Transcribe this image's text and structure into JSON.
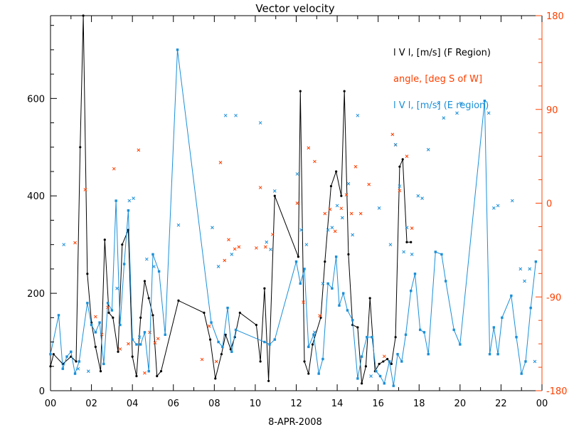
{
  "chart_data": {
    "type": "line",
    "title": "Vector velocity",
    "xlabel": "8-APR-2008",
    "xlim": [
      0,
      24
    ],
    "x_ticks": [
      "00",
      "02",
      "04",
      "06",
      "08",
      "10",
      "12",
      "14",
      "16",
      "18",
      "20",
      "22",
      "00"
    ],
    "y_left": {
      "lim": [
        0,
        770
      ],
      "ticks": [
        0,
        200,
        400,
        600
      ],
      "labels": [
        "0",
        "200",
        "400",
        "600"
      ]
    },
    "y_right": {
      "lim": [
        -180,
        180
      ],
      "ticks": [
        -180,
        -90,
        0,
        90,
        180
      ],
      "labels": [
        "-180",
        "-90",
        "0",
        "90",
        "180"
      ]
    },
    "grid": false,
    "legend_position": "top-right",
    "colors": {
      "f_region": "#000000",
      "angle": "#ff4000",
      "e_region": "#1a8fd8"
    },
    "series": [
      {
        "name": "l V l, [m/s] (F Region)",
        "axis": "left",
        "style": "line-dot",
        "color": "#000000",
        "x": [
          0.0,
          0.15,
          0.6,
          1.0,
          1.25,
          1.45,
          1.6,
          1.8,
          2.0,
          2.2,
          2.45,
          2.65,
          2.85,
          3.05,
          3.3,
          3.5,
          3.8,
          4.0,
          4.2,
          4.4,
          4.6,
          4.8,
          5.0,
          5.2,
          5.4,
          6.25,
          7.5,
          7.8,
          8.05,
          8.35,
          8.55,
          8.8,
          9.0,
          9.25,
          10.05,
          10.25,
          10.45,
          10.65,
          10.95,
          12.1,
          12.2,
          12.4,
          12.6,
          12.8,
          13.2,
          13.4,
          13.7,
          13.95,
          14.2,
          14.35,
          14.55,
          14.75,
          15.0,
          15.2,
          15.4,
          15.6,
          15.85,
          16.05,
          16.25,
          16.45,
          16.65,
          16.85,
          17.05,
          17.2,
          17.4,
          17.6
        ],
        "y": [
          50,
          75,
          55,
          70,
          60,
          500,
          770,
          240,
          140,
          90,
          40,
          310,
          160,
          150,
          80,
          300,
          330,
          70,
          30,
          150,
          225,
          190,
          155,
          30,
          40,
          185,
          160,
          105,
          25,
          75,
          115,
          85,
          110,
          160,
          135,
          60,
          210,
          20,
          400,
          275,
          615,
          60,
          35,
          95,
          150,
          265,
          420,
          450,
          400,
          615,
          280,
          135,
          130,
          15,
          50,
          190,
          40,
          55,
          60,
          65,
          55,
          110,
          460,
          475,
          305,
          305
        ]
      },
      {
        "name": "angle, [deg S of W]",
        "axis": "right",
        "style": "markers-x",
        "color": "#ff4000",
        "x": [
          1.2,
          1.7,
          2.2,
          2.5,
          2.8,
          3.1,
          3.4,
          3.8,
          4.3,
          4.6,
          4.85,
          5.1,
          5.25,
          7.4,
          7.75,
          8.1,
          8.3,
          8.5,
          8.7,
          9.0,
          9.2,
          10.05,
          10.25,
          10.5,
          10.85,
          12.05,
          12.35,
          12.6,
          12.9,
          13.15,
          13.4,
          13.65,
          13.9,
          14.2,
          14.45,
          14.7,
          14.9,
          15.15,
          15.55,
          16.3,
          16.7,
          16.85,
          17.05,
          17.4,
          17.65
        ],
        "y": [
          -38,
          13,
          -109,
          -126,
          -100,
          33,
          -140,
          -135,
          51,
          -163,
          -124,
          -134,
          -130,
          -150,
          -118,
          -152,
          39,
          -55,
          -35,
          -44,
          -42,
          -43,
          15,
          -42,
          -30,
          0,
          -95,
          53,
          40,
          -108,
          -10,
          -6,
          -27,
          -5,
          8,
          -10,
          35,
          -10,
          18,
          -147,
          66,
          56,
          12,
          45,
          -24
        ]
      },
      {
        "name": "l V l, [m/s] (E region)",
        "axis": "left",
        "style": "line-square",
        "color": "#1a8fd8",
        "x": [
          0.0,
          0.4,
          0.6,
          0.8,
          1.0,
          1.2,
          1.4,
          1.8,
          2.0,
          2.2,
          2.4,
          2.6,
          2.8,
          3.0,
          3.2,
          3.4,
          3.6,
          3.8,
          4.0,
          4.2,
          4.4,
          4.6,
          4.8,
          5.0,
          5.3,
          5.6,
          6.2,
          7.85,
          8.2,
          8.4,
          8.65,
          8.85,
          9.05,
          10.45,
          10.7,
          10.95,
          12.0,
          12.2,
          12.4,
          12.6,
          12.85,
          13.1,
          13.3,
          13.55,
          13.75,
          13.95,
          14.1,
          14.3,
          14.5,
          14.75,
          15.0,
          15.2,
          15.45,
          15.7,
          15.9,
          16.1,
          16.3,
          16.55,
          16.75,
          16.95,
          17.15,
          17.35,
          17.6,
          17.8,
          18.05,
          18.25,
          18.45,
          18.8,
          19.1,
          19.3,
          19.7,
          20.0,
          21.2,
          21.45,
          21.65,
          21.85,
          22.05,
          22.5,
          22.75,
          23.0,
          23.2,
          23.45,
          23.7
        ],
        "y": [
          75,
          155,
          45,
          70,
          80,
          35,
          60,
          180,
          135,
          120,
          140,
          55,
          180,
          165,
          390,
          135,
          260,
          370,
          105,
          95,
          95,
          120,
          40,
          280,
          245,
          115,
          700,
          140,
          100,
          90,
          170,
          80,
          125,
          100,
          95,
          105,
          265,
          220,
          250,
          90,
          115,
          35,
          65,
          220,
          210,
          275,
          175,
          200,
          165,
          145,
          25,
          70,
          110,
          110,
          40,
          30,
          15,
          60,
          10,
          75,
          60,
          115,
          205,
          240,
          125,
          120,
          75,
          285,
          280,
          225,
          125,
          95,
          595,
          75,
          130,
          75,
          150,
          195,
          110,
          35,
          60,
          170,
          265
        ]
      },
      {
        "name": "",
        "axis": "left",
        "style": "markers-x",
        "color": "#1a8fd8",
        "x": [
          0.65,
          1.35,
          1.85,
          3.25,
          3.85,
          4.05,
          4.35,
          4.7,
          5.05,
          6.25,
          7.9,
          8.2,
          8.55,
          8.85,
          9.05,
          10.25,
          10.55,
          10.75,
          10.95,
          12.05,
          12.25,
          12.5,
          12.9,
          13.3,
          13.55,
          13.75,
          14.0,
          14.25,
          14.55,
          14.75,
          15.0,
          15.65,
          16.05,
          16.6,
          16.85,
          17.05,
          17.25,
          17.4,
          17.65,
          17.95,
          18.15,
          18.45,
          18.95,
          19.2,
          19.85,
          20.05,
          21.4,
          21.65,
          21.85,
          22.55,
          22.95,
          23.15,
          23.4,
          23.65
        ],
        "y": [
          300,
          45,
          40,
          210,
          390,
          395,
          110,
          270,
          255,
          340,
          335,
          255,
          565,
          280,
          565,
          550,
          305,
          290,
          410,
          445,
          330,
          300,
          120,
          220,
          330,
          335,
          380,
          355,
          425,
          320,
          565,
          30,
          375,
          300,
          505,
          420,
          285,
          335,
          280,
          400,
          395,
          495,
          590,
          560,
          570,
          590,
          570,
          375,
          380,
          390,
          250,
          225,
          250,
          60
        ]
      }
    ]
  }
}
